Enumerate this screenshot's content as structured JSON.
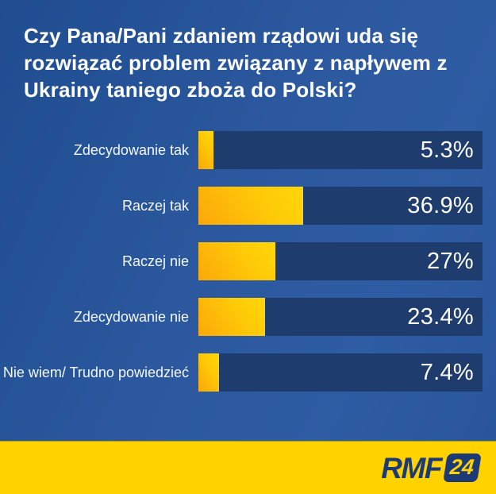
{
  "title": "Czy Pana/Pani zdaniem rządowi uda się\nrozwiązać problem związany z napływem z\nUkrainy taniego zboża do Polski?",
  "chart_data": {
    "type": "bar",
    "orientation": "horizontal",
    "title": "Czy Pana/Pani zdaniem rządowi uda się rozwiązać problem związany z napływem z Ukrainy taniego zboża do Polski?",
    "categories": [
      "Zdecydowanie tak",
      "Raczej tak",
      "Raczej nie",
      "Zdecydowanie nie",
      "Nie wiem/ Trudno powiedzieć"
    ],
    "values": [
      5.3,
      36.9,
      27,
      23.4,
      7.4
    ],
    "value_labels": [
      "5.3%",
      "36.9%",
      "27%",
      "23.4%",
      "7.4%"
    ],
    "xlim": [
      0,
      100
    ],
    "grid": false,
    "legend": false,
    "bar_color_gradient": [
      "#fba70a",
      "#ffd70a"
    ],
    "track_color": "#1e3c6d",
    "value_label_position": "inside-right"
  },
  "colors": {
    "background_blue": "#2a579e",
    "track_navy": "#1e3c6d",
    "bar_yellow_start": "#fba70a",
    "bar_yellow_end": "#ffd70a",
    "footer_yellow": "#ffd200",
    "logo_navy": "#1c3a74",
    "text_white": "#ffffff"
  },
  "footer": {
    "brand": "RMF",
    "brand_badge": "24"
  }
}
